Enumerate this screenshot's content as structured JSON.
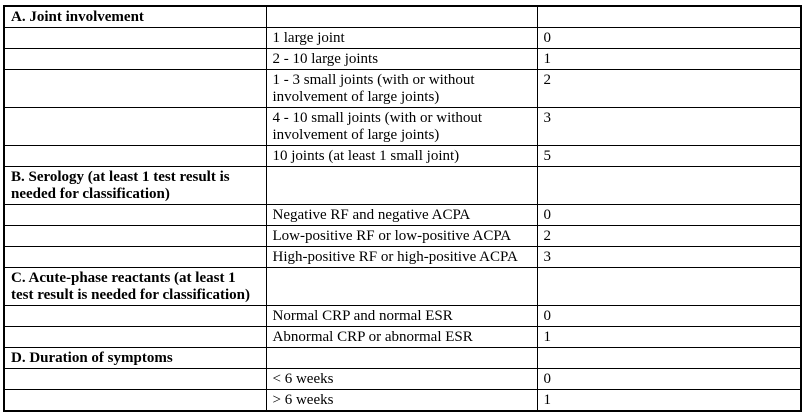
{
  "page": {
    "background_color": "#ffffff",
    "text_color": "#000000",
    "border_color": "#000000"
  },
  "table": {
    "name": "classification-criteria-scoring-table",
    "columns": [
      "category",
      "criterion",
      "score"
    ],
    "rows": [
      {
        "category": [
          "A. Joint involvement"
        ],
        "criterion": [],
        "score": "",
        "is_section_header": true
      },
      {
        "category": [],
        "criterion": [
          "1 large joint"
        ],
        "score": "0",
        "is_section_header": false
      },
      {
        "category": [],
        "criterion": [
          "2 - 10 large joints"
        ],
        "score": "1",
        "is_section_header": false
      },
      {
        "category": [],
        "criterion": [
          "1 - 3 small joints (with or without",
          "involvement of large joints)"
        ],
        "score": "2",
        "is_section_header": false
      },
      {
        "category": [],
        "criterion": [
          "4 - 10 small joints (with or without",
          "involvement of large joints)"
        ],
        "score": "3",
        "is_section_header": false
      },
      {
        "category": [],
        "criterion": [
          "10 joints (at least 1 small joint)"
        ],
        "score": "5",
        "is_section_header": false
      },
      {
        "category": [
          "B. Serology (at least 1 test result is",
          "needed for classification)"
        ],
        "criterion": [],
        "score": "",
        "is_section_header": true
      },
      {
        "category": [],
        "criterion": [
          "Negative RF and negative ACPA"
        ],
        "score": "0",
        "is_section_header": false
      },
      {
        "category": [],
        "criterion": [
          "Low-positive RF or low-positive ACPA"
        ],
        "score": "2",
        "is_section_header": false
      },
      {
        "category": [],
        "criterion": [
          "High-positive RF or high-positive ACPA"
        ],
        "score": "3",
        "is_section_header": false
      },
      {
        "category": [
          "C. Acute-phase reactants (at least 1",
          "test result is needed for classification)"
        ],
        "criterion": [],
        "score": "",
        "is_section_header": true
      },
      {
        "category": [],
        "criterion": [
          "Normal CRP and normal ESR"
        ],
        "score": "0",
        "is_section_header": false
      },
      {
        "category": [],
        "criterion": [
          "Abnormal CRP or abnormal ESR"
        ],
        "score": "1",
        "is_section_header": false
      },
      {
        "category": [
          "D. Duration of symptoms"
        ],
        "criterion": [],
        "score": "",
        "is_section_header": true
      },
      {
        "category": [],
        "criterion": [
          "< 6 weeks"
        ],
        "score": "0",
        "is_section_header": false
      },
      {
        "category": [],
        "criterion": [
          "> 6 weeks"
        ],
        "score": "1",
        "is_section_header": false
      }
    ]
  }
}
